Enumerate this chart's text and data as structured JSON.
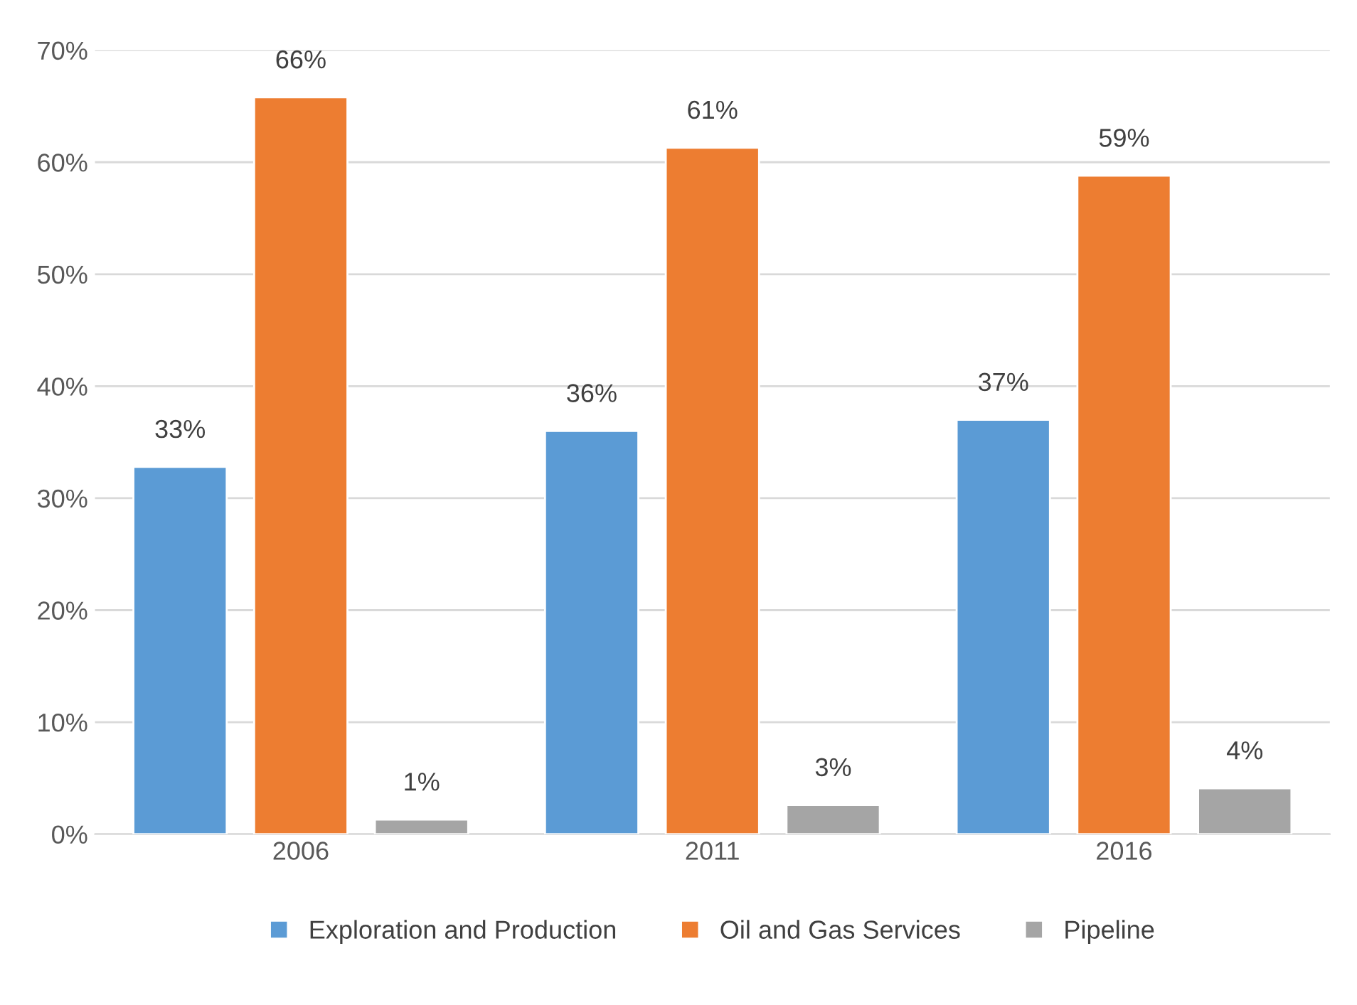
{
  "chart_data": {
    "type": "bar",
    "categories": [
      "2006",
      "2011",
      "2016"
    ],
    "series": [
      {
        "name": "Exploration and Production",
        "color": "#5b9bd5",
        "values": [
          32.8,
          36.0,
          37.0
        ],
        "value_labels": [
          "33%",
          "36%",
          "37%"
        ]
      },
      {
        "name": "Oil and Gas Services",
        "color": "#ed7d31",
        "values": [
          65.8,
          61.3,
          58.8
        ],
        "value_labels": [
          "66%",
          "61%",
          "59%"
        ]
      },
      {
        "name": "Pipeline",
        "color": "#a5a5a5",
        "values": [
          1.3,
          2.6,
          4.1
        ],
        "value_labels": [
          "1%",
          "3%",
          "4%"
        ]
      }
    ],
    "ylim": [
      0,
      70
    ],
    "yticks": [
      {
        "value": 0,
        "label": "0%"
      },
      {
        "value": 10,
        "label": "10%"
      },
      {
        "value": 20,
        "label": "20%"
      },
      {
        "value": 30,
        "label": "30%"
      },
      {
        "value": 40,
        "label": "40%"
      },
      {
        "value": 50,
        "label": "50%"
      },
      {
        "value": 60,
        "label": "60%"
      },
      {
        "value": 70,
        "label": "70%"
      }
    ],
    "grid": "y",
    "legend": "bottom"
  }
}
